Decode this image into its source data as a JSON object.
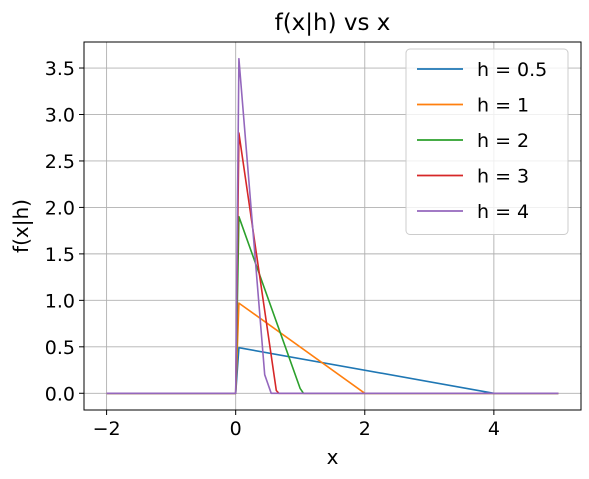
{
  "chart_data": {
    "type": "line",
    "title": "f(x|h) vs x",
    "xlabel": "x",
    "ylabel": "f(x|h)",
    "xlim": [
      -2.35,
      5.35
    ],
    "ylim": [
      -0.18,
      3.78
    ],
    "xticks": [
      -2,
      0,
      2,
      4
    ],
    "xtick_labels": [
      "−2",
      "0",
      "2",
      "4"
    ],
    "yticks": [
      0.0,
      0.5,
      1.0,
      1.5,
      2.0,
      2.5,
      3.0,
      3.5
    ],
    "ytick_labels": [
      "0.0",
      "0.5",
      "1.0",
      "1.5",
      "2.0",
      "2.5",
      "3.0",
      "3.5"
    ],
    "grid": true,
    "legend_position": "top-right",
    "series": [
      {
        "name": "h = 0.5",
        "color": "#1f77b4",
        "x": [
          -2,
          0,
          0.05,
          4,
          5
        ],
        "y": [
          0,
          0,
          0.49,
          0,
          0
        ]
      },
      {
        "name": "h = 1",
        "color": "#ff7f0e",
        "x": [
          -2,
          0,
          0.05,
          2,
          5
        ],
        "y": [
          0,
          0,
          0.97,
          0,
          0
        ]
      },
      {
        "name": "h = 2",
        "color": "#2ca02c",
        "x": [
          -2,
          0,
          0.05,
          1,
          1.05,
          5
        ],
        "y": [
          0,
          0,
          1.9,
          0.05,
          0,
          0
        ]
      },
      {
        "name": "h = 3",
        "color": "#d62728",
        "x": [
          -2,
          0,
          0.05,
          0.63,
          0.67,
          5
        ],
        "y": [
          0,
          0,
          2.8,
          0.03,
          0,
          0
        ]
      },
      {
        "name": "h = 4",
        "color": "#9467bd",
        "x": [
          -2,
          0,
          0.05,
          0.45,
          0.55,
          5
        ],
        "y": [
          0,
          0,
          3.6,
          0.2,
          0,
          0
        ]
      }
    ]
  }
}
